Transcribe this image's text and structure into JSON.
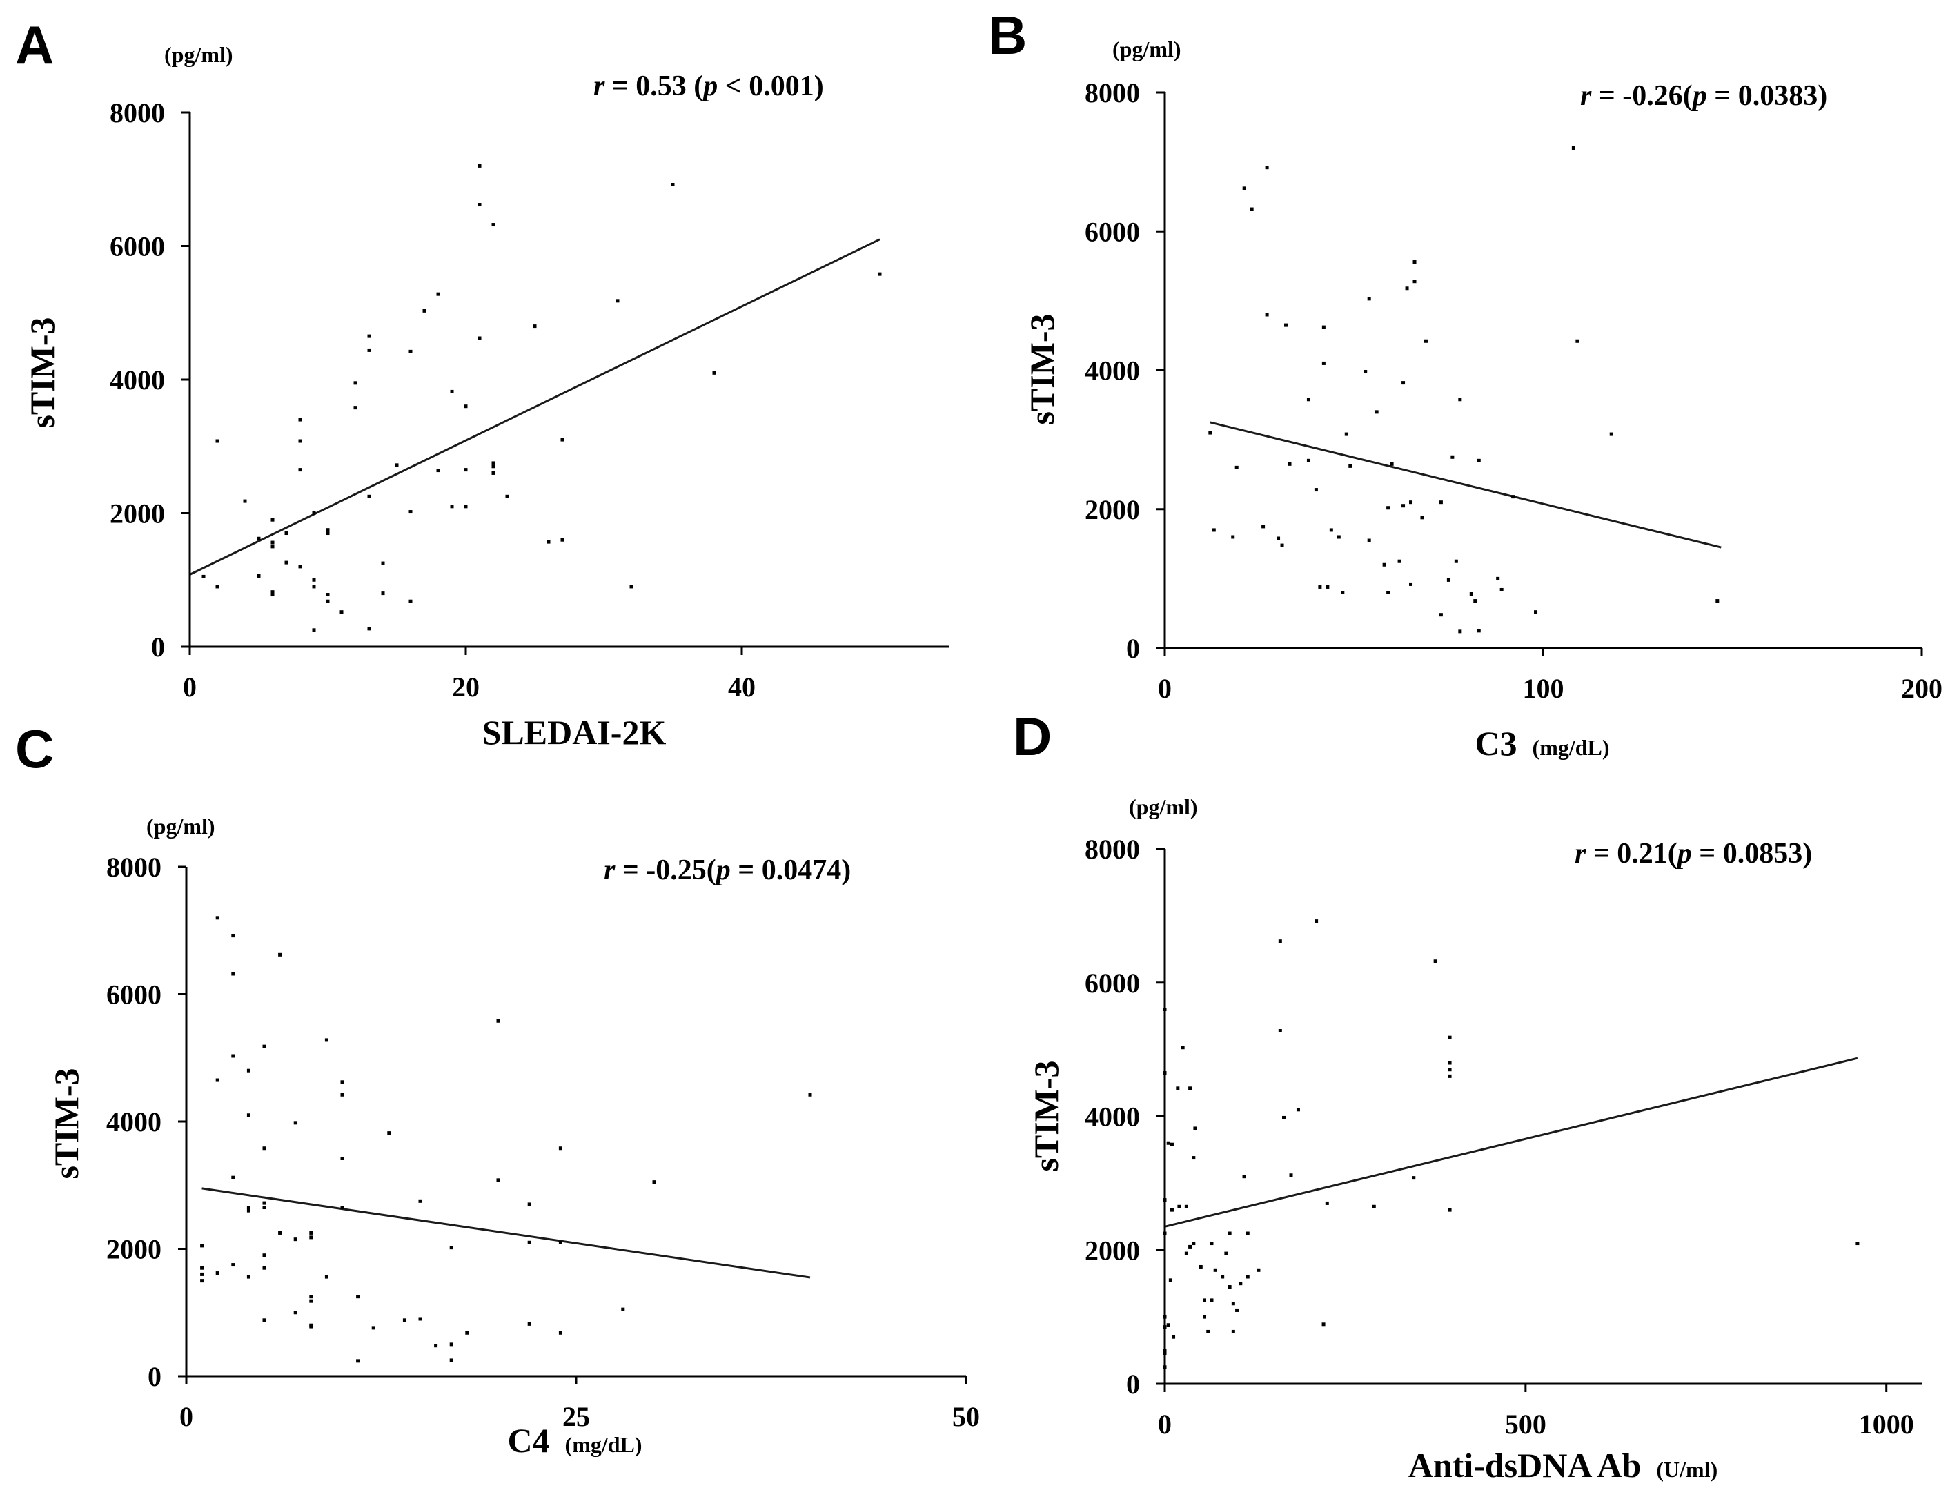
{
  "chart_data": [
    {
      "type": "scatter",
      "panel": "A",
      "ylabel": "sTIM-3",
      "yunit": "(pg/ml)",
      "xlabel": "SLEDAI-2K",
      "xunit": "",
      "annotation": {
        "r_label": "r",
        "r_value": " = 0.53 (",
        "p_label": "p",
        "p_value": " < 0.001)"
      },
      "xlim": [
        0,
        55
      ],
      "ylim": [
        0,
        8000
      ],
      "xticks": [
        0,
        20,
        40
      ],
      "yticks": [
        0,
        2000,
        4000,
        6000,
        8000
      ],
      "fit": [
        [
          0,
          1080
        ],
        [
          50,
          6100
        ]
      ],
      "points": [
        [
          1,
          1050
        ],
        [
          2,
          3080
        ],
        [
          2,
          900
        ],
        [
          4,
          2180
        ],
        [
          5,
          1620
        ],
        [
          5,
          1060
        ],
        [
          6,
          1900
        ],
        [
          6,
          1560
        ],
        [
          6,
          1500
        ],
        [
          6,
          820
        ],
        [
          6,
          780
        ],
        [
          7,
          1700
        ],
        [
          7,
          1260
        ],
        [
          8,
          3400
        ],
        [
          8,
          3080
        ],
        [
          8,
          2650
        ],
        [
          8,
          1200
        ],
        [
          9,
          2000
        ],
        [
          9,
          1000
        ],
        [
          9,
          900
        ],
        [
          9,
          250
        ],
        [
          10,
          1750
        ],
        [
          10,
          1700
        ],
        [
          10,
          780
        ],
        [
          10,
          680
        ],
        [
          11,
          520
        ],
        [
          12,
          3950
        ],
        [
          12,
          3580
        ],
        [
          13,
          4650
        ],
        [
          13,
          4440
        ],
        [
          13,
          2250
        ],
        [
          13,
          270
        ],
        [
          14,
          1250
        ],
        [
          14,
          800
        ],
        [
          15,
          2720
        ],
        [
          16,
          4420
        ],
        [
          16,
          2020
        ],
        [
          16,
          680
        ],
        [
          17,
          5030
        ],
        [
          18,
          5280
        ],
        [
          18,
          2640
        ],
        [
          19,
          3820
        ],
        [
          19,
          2100
        ],
        [
          20,
          3600
        ],
        [
          20,
          2650
        ],
        [
          20,
          2100
        ],
        [
          21,
          7200
        ],
        [
          21,
          6620
        ],
        [
          21,
          4620
        ],
        [
          22,
          6320
        ],
        [
          22,
          2750
        ],
        [
          22,
          2700
        ],
        [
          22,
          2600
        ],
        [
          23,
          2250
        ],
        [
          25,
          4800
        ],
        [
          26,
          1570
        ],
        [
          27,
          3100
        ],
        [
          27,
          1600
        ],
        [
          31,
          5180
        ],
        [
          32,
          900
        ],
        [
          35,
          6920
        ],
        [
          38,
          4100
        ],
        [
          50,
          5580
        ]
      ]
    },
    {
      "type": "scatter",
      "panel": "B",
      "ylabel": "sTIM-3",
      "yunit": "(pg/ml)",
      "xlabel": "C3",
      "xunit": "(mg/dL)",
      "annotation": {
        "r_label": "r",
        "r_value": " = -0.26(",
        "p_label": "p",
        "p_value": " = 0.0383)"
      },
      "xlim": [
        0,
        200
      ],
      "ylim": [
        0,
        8000
      ],
      "xticks": [
        0,
        100,
        200
      ],
      "yticks": [
        0,
        2000,
        4000,
        6000,
        8000
      ],
      "fit": [
        [
          12,
          3250
        ],
        [
          147,
          1450
        ]
      ],
      "points": [
        [
          12,
          3100
        ],
        [
          13,
          1700
        ],
        [
          18,
          1600
        ],
        [
          19,
          2600
        ],
        [
          21,
          6620
        ],
        [
          23,
          6320
        ],
        [
          26,
          1750
        ],
        [
          27,
          4800
        ],
        [
          27,
          6920
        ],
        [
          30,
          1580
        ],
        [
          31,
          1480
        ],
        [
          32,
          4650
        ],
        [
          33,
          2650
        ],
        [
          38,
          3580
        ],
        [
          38,
          2700
        ],
        [
          40,
          2280
        ],
        [
          41,
          880
        ],
        [
          42,
          4620
        ],
        [
          42,
          4100
        ],
        [
          43,
          880
        ],
        [
          44,
          1700
        ],
        [
          46,
          1600
        ],
        [
          47,
          800
        ],
        [
          48,
          3080
        ],
        [
          49,
          2620
        ],
        [
          53,
          3980
        ],
        [
          54,
          5030
        ],
        [
          54,
          1550
        ],
        [
          56,
          3400
        ],
        [
          58,
          1200
        ],
        [
          59,
          2020
        ],
        [
          59,
          800
        ],
        [
          60,
          2650
        ],
        [
          62,
          1250
        ],
        [
          63,
          3820
        ],
        [
          63,
          2050
        ],
        [
          64,
          5180
        ],
        [
          65,
          2100
        ],
        [
          65,
          920
        ],
        [
          66,
          5280
        ],
        [
          66,
          5560
        ],
        [
          68,
          1880
        ],
        [
          69,
          4420
        ],
        [
          73,
          2100
        ],
        [
          73,
          480
        ],
        [
          75,
          980
        ],
        [
          76,
          2750
        ],
        [
          77,
          1250
        ],
        [
          78,
          3580
        ],
        [
          78,
          240
        ],
        [
          81,
          780
        ],
        [
          82,
          680
        ],
        [
          83,
          2700
        ],
        [
          83,
          250
        ],
        [
          88,
          1000
        ],
        [
          89,
          840
        ],
        [
          92,
          2180
        ],
        [
          98,
          520
        ],
        [
          108,
          7200
        ],
        [
          109,
          4420
        ],
        [
          118,
          3080
        ],
        [
          146,
          680
        ]
      ]
    },
    {
      "type": "scatter",
      "panel": "C",
      "ylabel": "sTIM-3",
      "yunit": "(pg/ml)",
      "xlabel": "C4",
      "xunit": "(mg/dL)",
      "annotation": {
        "r_label": "r",
        "r_value": " = -0.25(",
        "p_label": "p",
        "p_value": " = 0.0474)"
      },
      "xlim": [
        0,
        50
      ],
      "ylim": [
        0,
        8000
      ],
      "xticks": [
        0,
        25,
        50
      ],
      "yticks": [
        0,
        2000,
        4000,
        6000,
        8000
      ],
      "fit": [
        [
          1,
          2950
        ],
        [
          40,
          1550
        ]
      ],
      "points": [
        [
          1,
          2050
        ],
        [
          1,
          1700
        ],
        [
          1,
          1600
        ],
        [
          1,
          1500
        ],
        [
          2,
          7200
        ],
        [
          2,
          4650
        ],
        [
          2,
          1620
        ],
        [
          3,
          6920
        ],
        [
          3,
          6320
        ],
        [
          3,
          5030
        ],
        [
          3,
          3120
        ],
        [
          3,
          1750
        ],
        [
          4,
          4800
        ],
        [
          4,
          4100
        ],
        [
          4,
          2650
        ],
        [
          4,
          2600
        ],
        [
          4,
          1560
        ],
        [
          5,
          5180
        ],
        [
          5,
          3580
        ],
        [
          5,
          2720
        ],
        [
          5,
          2650
        ],
        [
          5,
          1900
        ],
        [
          5,
          1700
        ],
        [
          5,
          880
        ],
        [
          6,
          6620
        ],
        [
          6,
          2250
        ],
        [
          7,
          3980
        ],
        [
          7,
          2150
        ],
        [
          7,
          1000
        ],
        [
          8,
          2250
        ],
        [
          8,
          2180
        ],
        [
          8,
          1250
        ],
        [
          8,
          1180
        ],
        [
          8,
          800
        ],
        [
          8,
          780
        ],
        [
          9,
          5280
        ],
        [
          9,
          1560
        ],
        [
          10,
          4620
        ],
        [
          10,
          4420
        ],
        [
          10,
          3420
        ],
        [
          10,
          2650
        ],
        [
          11,
          1250
        ],
        [
          11,
          240
        ],
        [
          12,
          760
        ],
        [
          13,
          3820
        ],
        [
          14,
          880
        ],
        [
          15,
          2750
        ],
        [
          15,
          900
        ],
        [
          16,
          480
        ],
        [
          17,
          2020
        ],
        [
          17,
          500
        ],
        [
          17,
          250
        ],
        [
          18,
          680
        ],
        [
          20,
          5580
        ],
        [
          20,
          3080
        ],
        [
          22,
          2700
        ],
        [
          22,
          2100
        ],
        [
          22,
          820
        ],
        [
          24,
          3580
        ],
        [
          24,
          2100
        ],
        [
          24,
          680
        ],
        [
          28,
          1050
        ],
        [
          30,
          3050
        ],
        [
          40,
          4420
        ]
      ]
    },
    {
      "type": "scatter",
      "panel": "D",
      "ylabel": "sTIM-3",
      "yunit": "(pg/ml)",
      "xlabel": "Anti-dsDNA Ab",
      "xunit": "(U/ml)",
      "annotation": {
        "r_label": "r",
        "r_value": " = 0.21(",
        "p_label": "p",
        "p_value": " = 0.0853)"
      },
      "xlim": [
        0,
        1050
      ],
      "ylim": [
        0,
        8000
      ],
      "xticks": [
        0,
        500,
        1000
      ],
      "yticks": [
        0,
        2000,
        4000,
        6000,
        8000
      ],
      "fit": [
        [
          0,
          2350
        ],
        [
          960,
          4870
        ]
      ],
      "points": [
        [
          0,
          5600
        ],
        [
          0,
          4650
        ],
        [
          0,
          2750
        ],
        [
          0,
          2250
        ],
        [
          0,
          1000
        ],
        [
          0,
          850
        ],
        [
          0,
          500
        ],
        [
          0,
          450
        ],
        [
          0,
          250
        ],
        [
          5,
          3600
        ],
        [
          5,
          880
        ],
        [
          8,
          1550
        ],
        [
          10,
          3580
        ],
        [
          10,
          2600
        ],
        [
          12,
          700
        ],
        [
          18,
          4420
        ],
        [
          20,
          2650
        ],
        [
          25,
          5030
        ],
        [
          30,
          2650
        ],
        [
          30,
          1950
        ],
        [
          35,
          4420
        ],
        [
          35,
          2050
        ],
        [
          40,
          3380
        ],
        [
          40,
          2100
        ],
        [
          42,
          3820
        ],
        [
          50,
          1750
        ],
        [
          55,
          1250
        ],
        [
          55,
          1000
        ],
        [
          60,
          780
        ],
        [
          65,
          2100
        ],
        [
          65,
          1250
        ],
        [
          70,
          1700
        ],
        [
          80,
          1600
        ],
        [
          85,
          1950
        ],
        [
          90,
          2250
        ],
        [
          90,
          1450
        ],
        [
          95,
          780
        ],
        [
          95,
          1200
        ],
        [
          100,
          1100
        ],
        [
          105,
          1500
        ],
        [
          110,
          3100
        ],
        [
          115,
          2250
        ],
        [
          115,
          1600
        ],
        [
          130,
          1700
        ],
        [
          160,
          6620
        ],
        [
          160,
          5280
        ],
        [
          165,
          3980
        ],
        [
          175,
          3120
        ],
        [
          185,
          4100
        ],
        [
          210,
          6920
        ],
        [
          220,
          890
        ],
        [
          225,
          2700
        ],
        [
          290,
          2650
        ],
        [
          345,
          3080
        ],
        [
          375,
          6320
        ],
        [
          395,
          5180
        ],
        [
          395,
          4800
        ],
        [
          395,
          4700
        ],
        [
          395,
          4600
        ],
        [
          395,
          2600
        ],
        [
          960,
          2100
        ]
      ]
    }
  ]
}
